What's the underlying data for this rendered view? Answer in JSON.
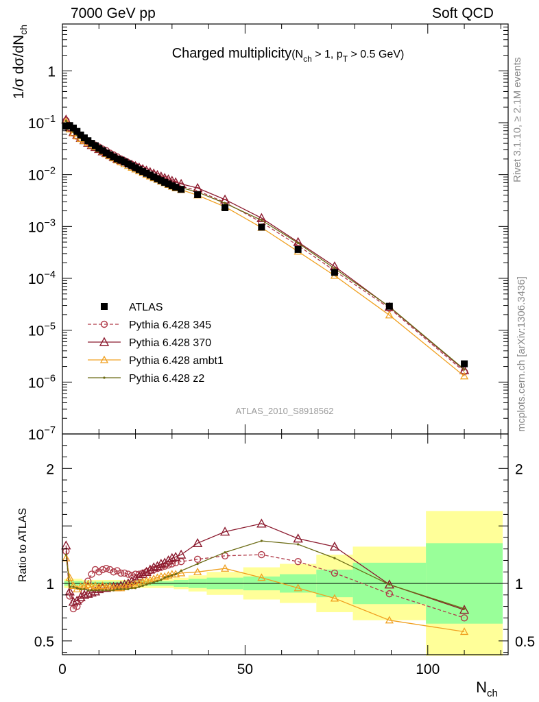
{
  "header": {
    "left": "7000 GeV pp",
    "right": "Soft QCD"
  },
  "side_labels": {
    "rivet": "Rivet 3.1.10, ≥ 2.1M events",
    "mcplots": "mcplots.cern.ch [arXiv:1306.3436]"
  },
  "chart_data": [
    {
      "type": "scatter",
      "panel": "main",
      "title_main": "Charged multiplicity",
      "title_cut": "(N",
      "title_cut_sub1": "ch",
      "title_cut_mid": " > 1, p",
      "title_cut_sub2": "T",
      "title_cut_end": " > 0.5 GeV)",
      "analysis_tag": "ATLAS_2010_S8918562",
      "ylabel": "1/σ dσ/dN",
      "ylabel_sub": "ch",
      "xlim": [
        0,
        122
      ],
      "ylim": [
        1e-07,
        8
      ],
      "yscale": "log",
      "x_ticks": [
        0,
        50,
        100
      ],
      "y_ticks": [
        {
          "base": "10",
          "exp": "−7",
          "value": 1e-07
        },
        {
          "base": "10",
          "exp": "−6",
          "value": 1e-06
        },
        {
          "base": "10",
          "exp": "−5",
          "value": 1e-05
        },
        {
          "base": "10",
          "exp": "−4",
          "value": 0.0001
        },
        {
          "base": "10",
          "exp": "−3",
          "value": 0.001
        },
        {
          "base": "10",
          "exp": "−2",
          "value": 0.01
        },
        {
          "base": "10",
          "exp": "−1",
          "value": 0.1
        },
        {
          "base": "1",
          "exp": "",
          "value": 1
        }
      ],
      "legend_position": "left-middle",
      "series": [
        {
          "name": "ATLAS",
          "color": "#000000",
          "style": "marker-square",
          "x": [
            1,
            2,
            3,
            4,
            5,
            6,
            7,
            8,
            9,
            10,
            11,
            12,
            13,
            14,
            15,
            16,
            17,
            18,
            19,
            20,
            21,
            22,
            23,
            24,
            25,
            26,
            27,
            28,
            29,
            30,
            31,
            32.5,
            37,
            44.5,
            54.5,
            64.5,
            74.5,
            89.5,
            110
          ],
          "y": [
            0.086,
            0.088,
            0.079,
            0.068,
            0.058,
            0.051,
            0.045,
            0.04,
            0.036,
            0.032,
            0.029,
            0.026,
            0.024,
            0.022,
            0.02,
            0.019,
            0.0175,
            0.016,
            0.0148,
            0.0136,
            0.0125,
            0.0115,
            0.0106,
            0.0098,
            0.009,
            0.0083,
            0.0077,
            0.0071,
            0.0066,
            0.0061,
            0.0057,
            0.0052,
            0.0041,
            0.0023,
            0.00097,
            0.00036,
            0.00013,
            2.9e-05,
            2.25e-06
          ]
        },
        {
          "name": "Pythia 6.428 345",
          "color": "#b03a48",
          "style": "dashed-circle",
          "x": [
            1,
            2,
            3,
            4,
            5,
            6,
            7,
            8,
            9,
            10,
            11,
            12,
            13,
            14,
            15,
            16,
            17,
            18,
            19,
            20,
            21,
            22,
            23,
            24,
            25,
            26,
            27,
            28,
            29,
            30,
            31,
            32.5,
            37,
            44.5,
            54.5,
            64.5,
            74.5,
            89.5,
            110
          ],
          "y": [
            0.11,
            0.078,
            0.063,
            0.055,
            0.05,
            0.047,
            0.043,
            0.04,
            0.037,
            0.034,
            0.031,
            0.029,
            0.026,
            0.024,
            0.022,
            0.02,
            0.0185,
            0.017,
            0.0157,
            0.0145,
            0.0134,
            0.0124,
            0.0115,
            0.0107,
            0.0099,
            0.0092,
            0.0086,
            0.008,
            0.0075,
            0.007,
            0.0065,
            0.006,
            0.0049,
            0.0029,
            0.0012,
            0.00043,
            0.00014,
            2.65e-05,
            1.58e-06
          ]
        },
        {
          "name": "Pythia 6.428 370",
          "color": "#8b1a2e",
          "style": "solid-triangle",
          "x": [
            1,
            2,
            3,
            4,
            5,
            6,
            7,
            8,
            9,
            10,
            11,
            12,
            13,
            14,
            15,
            16,
            17,
            18,
            19,
            20,
            21,
            22,
            23,
            24,
            25,
            26,
            27,
            28,
            29,
            30,
            31,
            32.5,
            37,
            44.5,
            54.5,
            64.5,
            74.5,
            89.5,
            110
          ],
          "y": [
            0.115,
            0.082,
            0.066,
            0.058,
            0.051,
            0.046,
            0.041,
            0.037,
            0.034,
            0.031,
            0.028,
            0.026,
            0.024,
            0.022,
            0.02,
            0.019,
            0.0178,
            0.0166,
            0.0155,
            0.0146,
            0.0137,
            0.0128,
            0.012,
            0.0112,
            0.0105,
            0.0098,
            0.0092,
            0.0086,
            0.0081,
            0.0076,
            0.0071,
            0.0066,
            0.0055,
            0.0033,
            0.00145,
            0.0005,
            0.00017,
            2.8e-05,
            1.7e-06
          ]
        },
        {
          "name": "Pythia 6.428 ambt1",
          "color": "#f0a020",
          "style": "solid-triangle-small",
          "x": [
            1,
            2,
            3,
            4,
            5,
            6,
            7,
            8,
            9,
            10,
            11,
            12,
            13,
            14,
            15,
            16,
            17,
            18,
            19,
            20,
            21,
            22,
            23,
            24,
            25,
            26,
            27,
            28,
            29,
            30,
            31,
            32.5,
            37,
            44.5,
            54.5,
            64.5,
            74.5,
            89.5,
            110
          ],
          "y": [
            0.105,
            0.075,
            0.063,
            0.055,
            0.049,
            0.045,
            0.041,
            0.037,
            0.034,
            0.031,
            0.028,
            0.025,
            0.0228,
            0.0208,
            0.019,
            0.0174,
            0.016,
            0.0148,
            0.0137,
            0.0127,
            0.0117,
            0.0108,
            0.01,
            0.0093,
            0.0086,
            0.008,
            0.0074,
            0.0069,
            0.0064,
            0.0059,
            0.0055,
            0.0051,
            0.004,
            0.0024,
            0.00095,
            0.00033,
            0.000113,
            1.95e-05,
            1.3e-06
          ]
        },
        {
          "name": "Pythia 6.428 z2",
          "color": "#6b6b14",
          "style": "solid-dot",
          "x": [
            1,
            2,
            3,
            4,
            5,
            6,
            7,
            8,
            9,
            10,
            11,
            12,
            13,
            14,
            15,
            16,
            17,
            18,
            19,
            20,
            21,
            22,
            23,
            24,
            25,
            26,
            27,
            28,
            29,
            30,
            31,
            32.5,
            37,
            44.5,
            54.5,
            64.5,
            74.5,
            89.5,
            110
          ],
          "y": [
            0.108,
            0.08,
            0.066,
            0.058,
            0.051,
            0.046,
            0.041,
            0.037,
            0.034,
            0.031,
            0.028,
            0.025,
            0.023,
            0.021,
            0.0193,
            0.0178,
            0.0165,
            0.0152,
            0.0141,
            0.0131,
            0.0121,
            0.0112,
            0.0104,
            0.0097,
            0.009,
            0.0084,
            0.0079,
            0.0074,
            0.0069,
            0.0064,
            0.006,
            0.0056,
            0.0046,
            0.0028,
            0.00132,
            0.00048,
            0.000155,
            2.85e-05,
            1.75e-06
          ]
        }
      ]
    },
    {
      "type": "line",
      "panel": "ratio",
      "ylabel": "Ratio to ATLAS",
      "xlabel": "N",
      "xlabel_sub": "ch",
      "xlim": [
        0,
        122
      ],
      "ylim": [
        0.38,
        2.3
      ],
      "x_ticks": [
        0,
        50,
        100
      ],
      "y_ticks": [
        0.5,
        1,
        2
      ],
      "y_tick_labels": [
        "0.5",
        "1",
        "2"
      ],
      "bands": {
        "stat_color": "#99ff99",
        "total_color": "#ffff99",
        "bins": [
          {
            "x0": 0.5,
            "x1": 1.5,
            "stat": 0.02,
            "total": 0.04
          },
          {
            "x0": 1.5,
            "x1": 5.5,
            "stat": 0.02,
            "total": 0.04
          },
          {
            "x0": 5.5,
            "x1": 20.5,
            "stat": 0.015,
            "total": 0.03
          },
          {
            "x0": 20.5,
            "x1": 30.5,
            "stat": 0.02,
            "total": 0.04
          },
          {
            "x0": 30.5,
            "x1": 34.5,
            "stat": 0.03,
            "total": 0.05
          },
          {
            "x0": 34.5,
            "x1": 39.5,
            "stat": 0.04,
            "total": 0.07
          },
          {
            "x0": 39.5,
            "x1": 49.5,
            "stat": 0.05,
            "total": 0.1
          },
          {
            "x0": 49.5,
            "x1": 59.5,
            "stat": 0.06,
            "total": 0.14
          },
          {
            "x0": 59.5,
            "x1": 69.5,
            "stat": 0.08,
            "total": 0.17
          },
          {
            "x0": 69.5,
            "x1": 79.5,
            "stat": 0.12,
            "total": 0.25
          },
          {
            "x0": 79.5,
            "x1": 99.5,
            "stat": 0.18,
            "total": 0.32
          },
          {
            "x0": 99.5,
            "x1": 120.5,
            "stat": 0.35,
            "total": 0.63
          }
        ]
      },
      "series": [
        {
          "name": "Pythia 6.428 345",
          "color": "#b03a48",
          "style": "dashed-circle",
          "x": [
            1,
            2,
            3,
            4,
            5,
            6,
            7,
            8,
            9,
            10,
            11,
            12,
            13,
            14,
            15,
            16,
            17,
            18,
            19,
            20,
            21,
            22,
            23,
            24,
            25,
            26,
            27,
            28,
            29,
            30,
            31,
            32.5,
            37,
            44.5,
            54.5,
            64.5,
            74.5,
            89.5,
            110
          ],
          "y": [
            1.28,
            0.89,
            0.78,
            0.8,
            0.86,
            0.93,
            1.02,
            1.08,
            1.12,
            1.1,
            1.12,
            1.13,
            1.12,
            1.1,
            1.11,
            1.09,
            1.09,
            1.08,
            1.07,
            1.08,
            1.08,
            1.09,
            1.1,
            1.11,
            1.12,
            1.13,
            1.14,
            1.15,
            1.16,
            1.17,
            1.18,
            1.19,
            1.21,
            1.24,
            1.25,
            1.19,
            1.09,
            0.91,
            0.7
          ]
        },
        {
          "name": "Pythia 6.428 370",
          "color": "#8b1a2e",
          "style": "solid-triangle",
          "x": [
            1,
            2,
            3,
            4,
            5,
            6,
            7,
            8,
            9,
            10,
            11,
            12,
            13,
            14,
            15,
            16,
            17,
            18,
            19,
            20,
            21,
            22,
            23,
            24,
            25,
            26,
            27,
            28,
            29,
            30,
            31,
            32.5,
            37,
            44.5,
            54.5,
            64.5,
            74.5,
            89.5,
            110
          ],
          "y": [
            1.33,
            0.93,
            0.84,
            0.85,
            0.88,
            0.9,
            0.91,
            0.92,
            0.93,
            0.95,
            0.96,
            0.96,
            0.97,
            0.97,
            0.97,
            0.98,
            0.99,
            1.0,
            1.02,
            1.04,
            1.06,
            1.08,
            1.1,
            1.12,
            1.14,
            1.15,
            1.17,
            1.18,
            1.2,
            1.22,
            1.23,
            1.25,
            1.35,
            1.45,
            1.52,
            1.39,
            1.32,
            0.99,
            0.77
          ]
        },
        {
          "name": "Pythia 6.428 ambt1",
          "color": "#f0a020",
          "style": "solid-triangle-small",
          "x": [
            1,
            2,
            3,
            4,
            5,
            6,
            7,
            8,
            9,
            10,
            11,
            12,
            13,
            14,
            15,
            16,
            17,
            18,
            19,
            20,
            21,
            22,
            23,
            24,
            25,
            26,
            27,
            28,
            29,
            30,
            31,
            32.5,
            37,
            44.5,
            54.5,
            64.5,
            74.5,
            89.5,
            110
          ],
          "y": [
            1.22,
            1.05,
            0.98,
            0.95,
            0.97,
            0.98,
            0.99,
            0.97,
            0.98,
            0.97,
            0.98,
            0.97,
            0.97,
            0.96,
            0.96,
            0.96,
            0.97,
            0.98,
            0.98,
            0.99,
            1.0,
            1.01,
            1.02,
            1.03,
            1.04,
            1.05,
            1.06,
            1.06,
            1.07,
            1.08,
            1.08,
            1.09,
            1.1,
            1.13,
            1.05,
            0.96,
            0.87,
            0.68,
            0.58
          ]
        },
        {
          "name": "Pythia 6.428 z2",
          "color": "#6b6b14",
          "style": "solid-dot",
          "x": [
            1,
            2,
            3,
            4,
            5,
            6,
            7,
            8,
            9,
            10,
            11,
            12,
            13,
            14,
            15,
            16,
            17,
            18,
            19,
            20,
            21,
            22,
            23,
            24,
            25,
            26,
            27,
            28,
            29,
            30,
            31,
            32.5,
            37,
            44.5,
            54.5,
            64.5,
            74.5,
            89.5,
            110
          ],
          "y": [
            1.25,
            0.97,
            0.97,
            0.96,
            0.95,
            0.95,
            0.94,
            0.94,
            0.94,
            0.94,
            0.94,
            0.94,
            0.94,
            0.94,
            0.95,
            0.95,
            0.95,
            0.95,
            0.96,
            0.96,
            0.97,
            0.98,
            0.99,
            1.0,
            1.01,
            1.02,
            1.03,
            1.05,
            1.06,
            1.07,
            1.08,
            1.11,
            1.17,
            1.27,
            1.37,
            1.34,
            1.22,
            0.99,
            0.78
          ]
        }
      ]
    }
  ]
}
